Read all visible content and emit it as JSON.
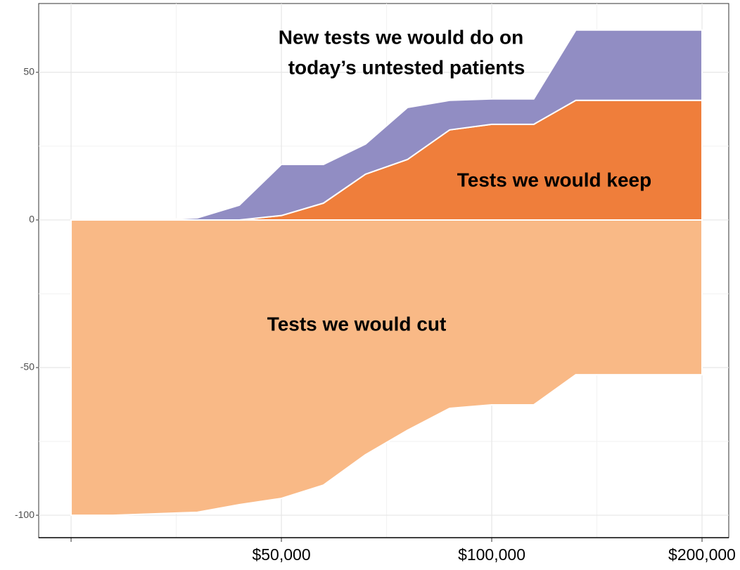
{
  "chart_data": {
    "type": "stacked-area",
    "x": [
      0,
      0.2,
      0.4,
      0.6,
      0.8,
      1.0,
      1.2,
      1.4,
      1.6,
      1.8,
      2.0,
      2.2,
      2.4,
      3.0
    ],
    "series": [
      {
        "color": "#f9b986",
        "values": [
          -100,
          -100,
          -99.5,
          -99,
          -96.4,
          -94.3,
          -89.8,
          -79.5,
          -71.2,
          -63.8,
          -62.6,
          -62.6,
          -52.4,
          -52.4
        ]
      },
      {
        "color": "#ef7e3b",
        "values": [
          0,
          0,
          0,
          0,
          0,
          1.5,
          5.7,
          15.5,
          20.5,
          30.5,
          32.4,
          32.4,
          40.5,
          40.5
        ]
      },
      {
        "color": "#918dc3",
        "values": [
          0,
          0,
          0,
          0.7,
          5,
          17.3,
          13.1,
          10.2,
          17.6,
          10,
          8.6,
          8.6,
          23.8,
          23.8
        ]
      }
    ],
    "annotations": [
      "New tests we would do on",
      "today’s untested patients",
      "Tests we would keep",
      "Tests we would cut"
    ],
    "xlim": [
      -0.154,
      3.127
    ],
    "ylim": [
      -107.6,
      73.3
    ],
    "xticks": [
      {
        "value": 0,
        "label": null
      },
      {
        "value": 1,
        "label": "$50,000"
      },
      {
        "value": 2,
        "label": "$100,000"
      },
      {
        "value": 3,
        "label": "$200,000"
      }
    ],
    "yticks": [
      -100,
      -50,
      0,
      50
    ],
    "grid": true
  }
}
